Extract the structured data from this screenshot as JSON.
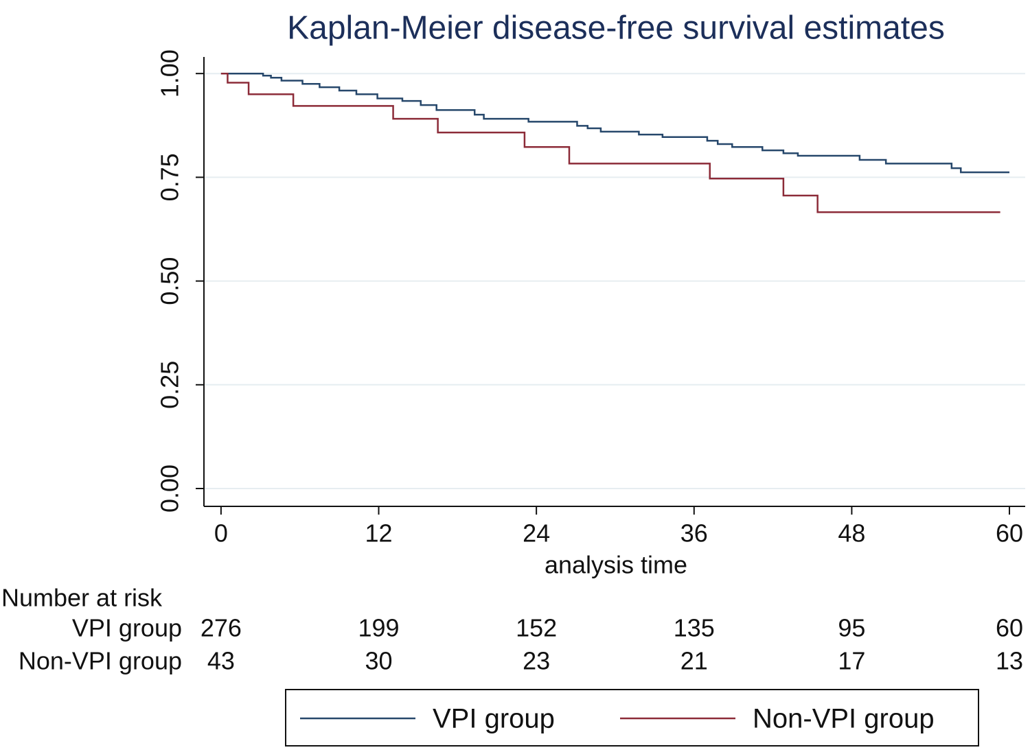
{
  "chart_data": {
    "type": "line",
    "step": "post",
    "title": "Kaplan-Meier disease-free survival estimates",
    "xlabel": "analysis time",
    "xlim": [
      -1.3,
      61.2
    ],
    "ylim": [
      -0.043,
      1.04
    ],
    "xticks": [
      0,
      12,
      24,
      36,
      48,
      60
    ],
    "yticks": [
      {
        "value": 0,
        "label": "0.00"
      },
      {
        "value": 0.25,
        "label": "0.25"
      },
      {
        "value": 0.5,
        "label": "0.50"
      },
      {
        "value": 0.75,
        "label": "0.75"
      },
      {
        "value": 1,
        "label": "1.00"
      }
    ],
    "grid": true,
    "series": [
      {
        "name": "VPI group",
        "color": "#26476b",
        "x": [
          0,
          3.2,
          3.8,
          4.6,
          6.2,
          7.5,
          9.0,
          10.3,
          11.9,
          13.8,
          15.2,
          16.4,
          19.3,
          20.0,
          23.4,
          27.1,
          27.9,
          28.9,
          31.8,
          33.6,
          37.0,
          37.8,
          38.9,
          41.2,
          42.8,
          43.9,
          48.6,
          50.6,
          55.6,
          56.3,
          60
        ],
        "values": [
          1.0,
          0.995,
          0.99,
          0.983,
          0.975,
          0.967,
          0.959,
          0.95,
          0.94,
          0.934,
          0.924,
          0.912,
          0.901,
          0.891,
          0.884,
          0.874,
          0.868,
          0.86,
          0.853,
          0.847,
          0.838,
          0.83,
          0.823,
          0.815,
          0.808,
          0.802,
          0.792,
          0.783,
          0.772,
          0.762,
          0.762
        ]
      },
      {
        "name": "Non-VPI group",
        "color": "#8c2b38",
        "x": [
          0,
          0.5,
          2.1,
          5.5,
          13.1,
          16.5,
          23.1,
          26.5,
          37.2,
          42.8,
          45.4,
          59.3
        ],
        "values": [
          1.0,
          0.978,
          0.95,
          0.922,
          0.891,
          0.858,
          0.823,
          0.783,
          0.747,
          0.706,
          0.666,
          0.666
        ]
      }
    ],
    "risk_table": {
      "title": "Number at risk",
      "rows": [
        {
          "name": "VPI group",
          "values": [
            276,
            199,
            152,
            135,
            95,
            60
          ]
        },
        {
          "name": "Non-VPI group",
          "values": [
            43,
            30,
            23,
            21,
            17,
            13
          ]
        }
      ]
    }
  }
}
